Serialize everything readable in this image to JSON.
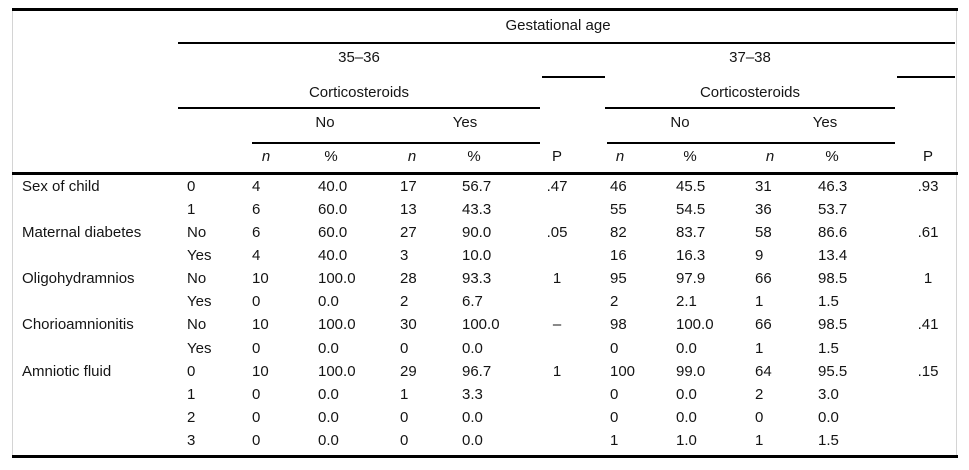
{
  "table": {
    "title_spanner": "Gestational age",
    "groups": [
      {
        "age_label": "35–36",
        "cortico_label": "Corticosteroids",
        "no_label": "No",
        "yes_label": "Yes"
      },
      {
        "age_label": "37–38",
        "cortico_label": "Corticosteroids",
        "no_label": "No",
        "yes_label": "Yes"
      }
    ],
    "sub_cols": [
      "n",
      "%",
      "n",
      "%",
      "P",
      "n",
      "%",
      "n",
      "%",
      "P"
    ],
    "rows": [
      {
        "label": "Sex of child",
        "category": "0",
        "cells": [
          "4",
          "40.0",
          "17",
          "56.7",
          ".47",
          "46",
          "45.5",
          "31",
          "46.3",
          ".93"
        ]
      },
      {
        "label": "",
        "category": "1",
        "cells": [
          "6",
          "60.0",
          "13",
          "43.3",
          "",
          "55",
          "54.5",
          "36",
          "53.7",
          ""
        ]
      },
      {
        "label": "Maternal diabetes",
        "category": "No",
        "cells": [
          "6",
          "60.0",
          "27",
          "90.0",
          ".05",
          "82",
          "83.7",
          "58",
          "86.6",
          ".61"
        ]
      },
      {
        "label": "",
        "category": "Yes",
        "cells": [
          "4",
          "40.0",
          "3",
          "10.0",
          "",
          "16",
          "16.3",
          "9",
          "13.4",
          ""
        ]
      },
      {
        "label": "Oligohydramnios",
        "category": "No",
        "cells": [
          "10",
          "100.0",
          "28",
          "93.3",
          "1",
          "95",
          "97.9",
          "66",
          "98.5",
          "1"
        ]
      },
      {
        "label": "",
        "category": "Yes",
        "cells": [
          "0",
          "0.0",
          "2",
          "6.7",
          "",
          "2",
          "2.1",
          "1",
          "1.5",
          ""
        ]
      },
      {
        "label": "Chorioamnionitis",
        "category": "No",
        "cells": [
          "10",
          "100.0",
          "30",
          "100.0",
          "–",
          "98",
          "100.0",
          "66",
          "98.5",
          ".41"
        ]
      },
      {
        "label": "",
        "category": "Yes",
        "cells": [
          "0",
          "0.0",
          "0",
          "0.0",
          "",
          "0",
          "0.0",
          "1",
          "1.5",
          ""
        ]
      },
      {
        "label": "Amniotic fluid",
        "category": "0",
        "cells": [
          "10",
          "100.0",
          "29",
          "96.7",
          "1",
          "100",
          "99.0",
          "64",
          "95.5",
          ".15"
        ]
      },
      {
        "label": "",
        "category": "1",
        "cells": [
          "0",
          "0.0",
          "1",
          "3.3",
          "",
          "0",
          "0.0",
          "2",
          "3.0",
          ""
        ]
      },
      {
        "label": "",
        "category": "2",
        "cells": [
          "0",
          "0.0",
          "0",
          "0.0",
          "",
          "0",
          "0.0",
          "0",
          "0.0",
          ""
        ]
      },
      {
        "label": "",
        "category": "3",
        "cells": [
          "0",
          "0.0",
          "0",
          "0.0",
          "",
          "1",
          "1.0",
          "1",
          "1.5",
          ""
        ]
      }
    ],
    "colors": {
      "rule": "#000000",
      "background": "#ffffff",
      "frame": "#d4d4d4"
    }
  }
}
